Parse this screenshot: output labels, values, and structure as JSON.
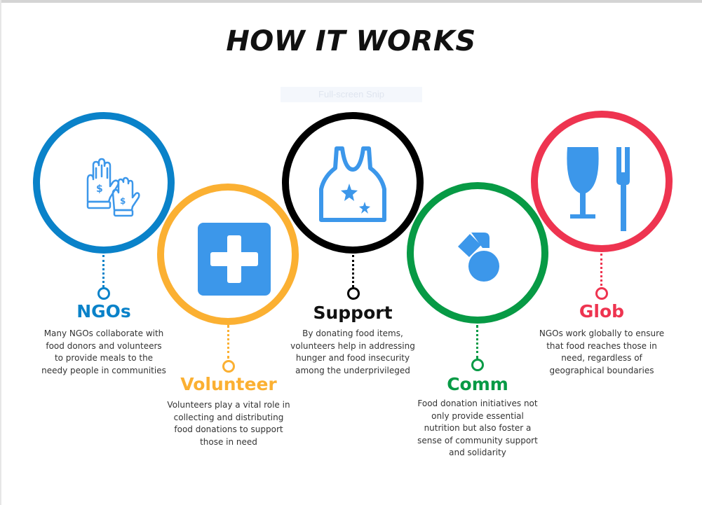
{
  "title": "HOW IT WORKS",
  "overlay_text": "Full-screen Snip",
  "steps": [
    {
      "title": "NGOs",
      "icon": "hands-with-money-icon",
      "color": "#0a82c9",
      "description": "Many NGOs collaborate with food donors and volunteers to provide meals to the needy people in communities"
    },
    {
      "title": "Volunteer",
      "icon": "medical-cross-icon",
      "color": "#fbb032",
      "description": "Volunteers play a vital role in collecting and distributing food donations to support those in need"
    },
    {
      "title": "Support",
      "icon": "tank-top-icon",
      "color": "#000000",
      "description": "By donating food items, volunteers help in addressing hunger and food insecurity among the underprivileged"
    },
    {
      "title": "Comm",
      "icon": "medal-icon",
      "color": "#079a45",
      "description": "Food donation initiatives not only provide essential nutrition but also foster a sense of community support and solidarity"
    },
    {
      "title": "Glob",
      "icon": "glass-and-fork-icon",
      "color": "#ee3450",
      "description": "NGOs work globally to ensure that food reaches those in need, regardless of geographical boundaries"
    }
  ],
  "icon_color": "#3c97ea"
}
